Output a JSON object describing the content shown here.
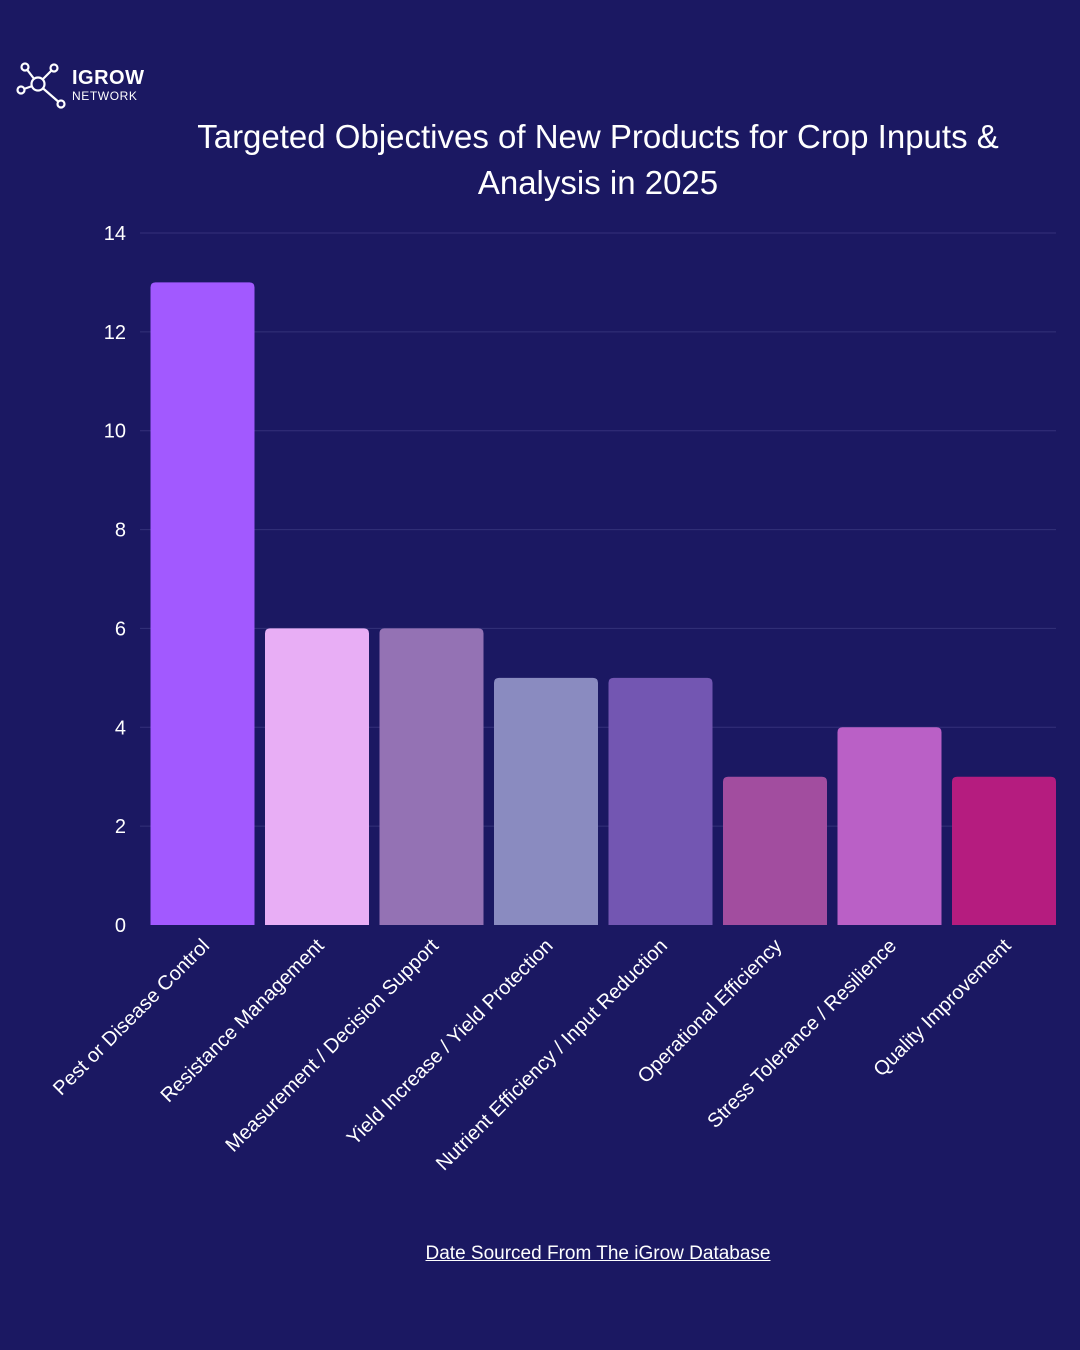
{
  "brand": {
    "name": "IGROW",
    "subname": "NETWORK",
    "logo_icon": "molecule-network-icon"
  },
  "title": "Targeted Objectives of New Products for Crop Inputs & Analysis in 2025",
  "source_link": "Date Sourced From The iGrow Database",
  "colors": {
    "background": "#1b1862",
    "gridline": "#34317a",
    "text": "#ffffff"
  },
  "chart_data": {
    "type": "bar",
    "title": "Targeted Objectives of New Products for Crop Inputs & Analysis in 2025",
    "xlabel": "",
    "ylabel": "",
    "ylim": [
      0,
      14
    ],
    "yticks": [
      0,
      2,
      4,
      6,
      8,
      10,
      12,
      14
    ],
    "grid": true,
    "categories": [
      "Pest or Disease Control",
      "Resistance Management",
      "Measurement / Decision Support",
      "Yield Increase / Yield Protection",
      "Nutrient Efficiency / Input Reduction",
      "Operational Efficiency",
      "Stress Tolerance / Resilience",
      "Quality Improvement"
    ],
    "values": [
      13,
      6,
      6,
      5,
      5,
      3,
      4,
      3
    ],
    "bar_colors": [
      "#a259ff",
      "#e8aef5",
      "#9472b4",
      "#8a8bc0",
      "#7356b2",
      "#a24d9f",
      "#ba60c6",
      "#b51c7f"
    ]
  }
}
